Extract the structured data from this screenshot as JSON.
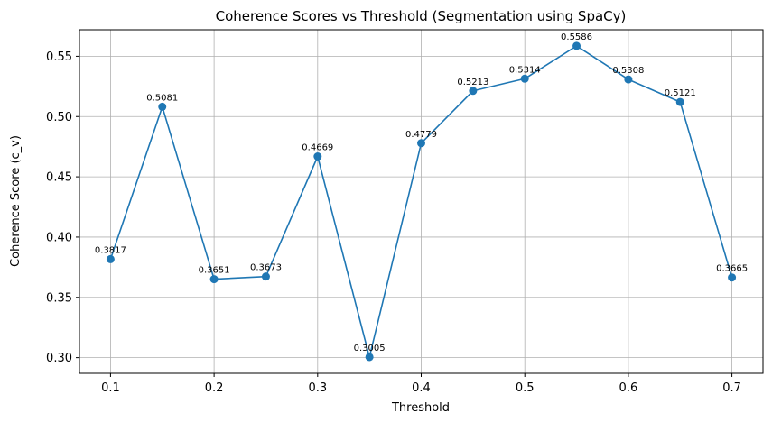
{
  "chart_data": {
    "type": "line",
    "title": "Coherence Scores vs Threshold (Segmentation using SpaCy)",
    "xlabel": "Threshold",
    "ylabel": "Coherence Score (c_v)",
    "xlim": [
      0.07,
      0.73
    ],
    "ylim": [
      0.287,
      0.572
    ],
    "xticks": [
      0.1,
      0.2,
      0.3,
      0.4,
      0.5,
      0.6,
      0.7
    ],
    "xtick_labels": [
      "0.1",
      "0.2",
      "0.3",
      "0.4",
      "0.5",
      "0.6",
      "0.7"
    ],
    "yticks": [
      0.3,
      0.35,
      0.4,
      0.45,
      0.5,
      0.55
    ],
    "ytick_labels": [
      "0.30",
      "0.35",
      "0.40",
      "0.45",
      "0.50",
      "0.55"
    ],
    "grid": true,
    "series": [
      {
        "color": "#1f77b4",
        "marker": "circle",
        "x": [
          0.1,
          0.15,
          0.2,
          0.25,
          0.3,
          0.35,
          0.4,
          0.45,
          0.5,
          0.55,
          0.6,
          0.65,
          0.7
        ],
        "y": [
          0.3817,
          0.5081,
          0.3651,
          0.3673,
          0.4669,
          0.3005,
          0.4779,
          0.5213,
          0.5314,
          0.5586,
          0.5308,
          0.5121,
          0.3665
        ],
        "labels": [
          "0.3817",
          "0.5081",
          "0.3651",
          "0.3673",
          "0.4669",
          "0.3005",
          "0.4779",
          "0.5213",
          "0.5314",
          "0.5586",
          "0.5308",
          "0.5121",
          "0.3665"
        ]
      }
    ]
  }
}
